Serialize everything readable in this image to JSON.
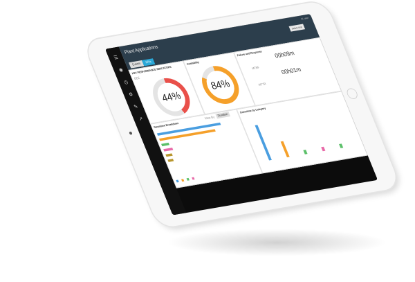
{
  "app": {
    "title": "Plant Applications",
    "user": "Hi, user",
    "dropdown": "Select Unit",
    "tabs": [
      "Events",
      "KPIs"
    ]
  },
  "sidebar": {
    "icons": [
      "menu-icon",
      "dashboard-icon",
      "clock-icon",
      "gear-icon",
      "edit-icon",
      "chart-icon"
    ]
  },
  "kpi": {
    "title": "KEY PERFORMANCE INDICATORS",
    "oee_label": "OEE",
    "oee_value": "44%",
    "oee_fraction": 0.44,
    "availability_label": "Availability",
    "availability_value": "84%",
    "availability_fraction": 0.84
  },
  "failure": {
    "title": "Failure and Response",
    "mtbf_label": "MTBF",
    "mtbf_value": "00h09m",
    "mttr_label": "MTTR",
    "mttr_value": "00h01m"
  },
  "breakdown": {
    "title": "Downtime Breakdown",
    "view_by": "View By",
    "view_select": "Duration",
    "bars": [
      100,
      88,
      12,
      14,
      10,
      8
    ]
  },
  "category": {
    "title": "Downtime by Category",
    "bars": [
      100,
      45,
      12,
      12,
      12
    ]
  },
  "colors": {
    "blue": "#4a9ee0",
    "orange": "#f5a02a",
    "green": "#5cc06a",
    "pink": "#e86aa8",
    "olive": "#b8962e",
    "red": "#e9504a",
    "header": "#2c3e4c",
    "accent": "#2aa8d8"
  }
}
